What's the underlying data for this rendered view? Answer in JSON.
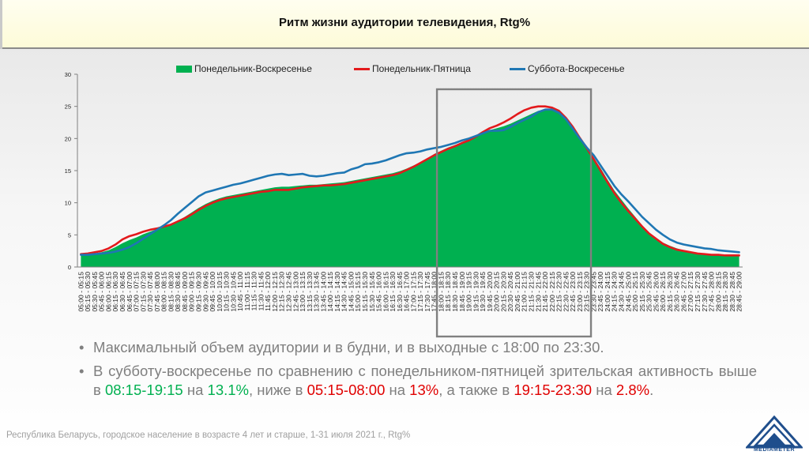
{
  "title": "Ритм жизни аудитории телевидения, Rtg%",
  "legend": {
    "all": "Понедельник-Воскресенье",
    "weekdays": "Понедельник-Пятница",
    "weekend": "Суббота-Воскресенье"
  },
  "colors": {
    "all": "#00b050",
    "weekdays": "#e31a1c",
    "weekend": "#1f77b4",
    "highlight": "#808080"
  },
  "chart_data": {
    "type": "area",
    "ylim": [
      0,
      30
    ],
    "yticks": [
      0,
      5,
      10,
      15,
      20,
      25,
      30
    ],
    "categories": [
      "05:00 - 05:15",
      "05:15 - 05:30",
      "05:30 - 05:45",
      "05:45 - 06:00",
      "06:00 - 06:15",
      "06:15 - 06:30",
      "06:30 - 06:45",
      "06:45 - 07:00",
      "07:00 - 07:15",
      "07:15 - 07:30",
      "07:30 - 07:45",
      "07:45 - 08:00",
      "08:00 - 08:15",
      "08:15 - 08:30",
      "08:30 - 08:45",
      "08:45 - 09:00",
      "09:00 - 09:15",
      "09:15 - 09:30",
      "09:30 - 09:45",
      "09:45 - 10:00",
      "10:00 - 10:15",
      "10:15 - 10:30",
      "10:30 - 10:45",
      "10:45 - 11:00",
      "11:00 - 11:15",
      "11:15 - 11:30",
      "11:30 - 11:45",
      "11:45 - 12:00",
      "12:00 - 12:15",
      "12:15 - 12:30",
      "12:30 - 12:45",
      "12:45 - 13:00",
      "13:00 - 13:15",
      "13:15 - 13:30",
      "13:30 - 13:45",
      "13:45 - 14:00",
      "14:00 - 14:15",
      "14:15 - 14:30",
      "14:30 - 14:45",
      "14:45 - 15:00",
      "15:00 - 15:15",
      "15:15 - 15:30",
      "15:30 - 15:45",
      "15:45 - 16:00",
      "16:00 - 16:15",
      "16:15 - 16:30",
      "16:30 - 16:45",
      "16:45 - 17:00",
      "17:00 - 17:15",
      "17:15 - 17:30",
      "17:30 - 17:45",
      "17:45 - 18:00",
      "18:00 - 18:15",
      "18:15 - 18:30",
      "18:30 - 18:45",
      "18:45 - 19:00",
      "19:00 - 19:15",
      "19:15 - 19:30",
      "19:30 - 19:45",
      "19:45 - 20:00",
      "20:00 - 20:15",
      "20:15 - 20:30",
      "20:30 - 20:45",
      "20:45 - 21:00",
      "21:00 - 21:15",
      "21:15 - 21:30",
      "21:30 - 21:45",
      "21:45 - 22:00",
      "22:00 - 22:15",
      "22:15 - 22:30",
      "22:30 - 22:45",
      "22:45 - 23:00",
      "23:00 - 23:15",
      "23:15 - 23:30",
      "23:30 - 23:45",
      "23:45 - 24:00",
      "24:00 - 24:15",
      "24:15 - 24:30",
      "24:30 - 24:45",
      "24:45 - 25:00",
      "25:00 - 25:15",
      "25:15 - 25:30",
      "25:30 - 25:45",
      "25:45 - 26:00",
      "26:00 - 26:15",
      "26:15 - 26:30",
      "26:30 - 26:45",
      "26:45 - 27:00",
      "27:00 - 27:15",
      "27:15 - 27:30",
      "27:30 - 27:45",
      "27:45 - 28:00",
      "28:00 - 28:15",
      "28:15 - 28:30",
      "28:30 - 28:45",
      "28:45 - 29:00"
    ],
    "series": [
      {
        "name": "Понедельник-Воскресенье",
        "type": "area",
        "values": [
          1.9,
          2.0,
          2.1,
          2.3,
          2.6,
          3.1,
          3.7,
          4.2,
          4.6,
          5.1,
          5.5,
          5.9,
          6.3,
          6.7,
          7.2,
          7.8,
          8.5,
          9.2,
          9.8,
          10.3,
          10.7,
          11.0,
          11.2,
          11.4,
          11.6,
          11.8,
          12.0,
          12.2,
          12.4,
          12.5,
          12.5,
          12.6,
          12.7,
          12.8,
          12.8,
          12.9,
          13.0,
          13.1,
          13.2,
          13.4,
          13.6,
          13.8,
          14.0,
          14.2,
          14.4,
          14.6,
          14.9,
          15.3,
          15.8,
          16.3,
          16.9,
          17.6,
          18.1,
          18.6,
          19.0,
          19.4,
          19.8,
          20.3,
          20.8,
          21.3,
          21.6,
          21.9,
          22.3,
          22.8,
          23.3,
          23.8,
          24.3,
          24.5,
          24.4,
          24.0,
          23.0,
          21.7,
          20.2,
          18.6,
          17.0,
          15.4,
          13.6,
          11.9,
          10.5,
          9.1,
          7.8,
          6.5,
          5.4,
          4.5,
          3.8,
          3.3,
          2.9,
          2.6,
          2.4,
          2.2,
          2.1,
          2.0,
          2.0,
          1.9,
          1.9,
          1.8
        ]
      },
      {
        "name": "Понедельник-Пятница",
        "type": "line",
        "values": [
          2.0,
          2.1,
          2.3,
          2.5,
          2.9,
          3.5,
          4.3,
          4.8,
          5.1,
          5.5,
          5.8,
          6.0,
          6.3,
          6.6,
          7.1,
          7.6,
          8.2,
          8.9,
          9.5,
          10.0,
          10.4,
          10.7,
          10.9,
          11.1,
          11.3,
          11.5,
          11.7,
          11.8,
          12.0,
          12.0,
          12.0,
          12.2,
          12.4,
          12.5,
          12.6,
          12.7,
          12.7,
          12.8,
          12.9,
          13.1,
          13.3,
          13.5,
          13.7,
          13.9,
          14.1,
          14.3,
          14.6,
          15.1,
          15.6,
          16.2,
          16.8,
          17.4,
          17.9,
          18.4,
          18.8,
          19.3,
          19.7,
          20.3,
          21.0,
          21.6,
          22.0,
          22.5,
          23.1,
          23.8,
          24.4,
          24.8,
          25.0,
          25.0,
          24.8,
          24.3,
          23.2,
          21.8,
          20.1,
          18.5,
          16.8,
          15.0,
          13.2,
          11.5,
          10.0,
          8.7,
          7.5,
          6.3,
          5.2,
          4.4,
          3.6,
          3.1,
          2.7,
          2.5,
          2.3,
          2.1,
          2.0,
          1.9,
          1.9,
          1.8,
          1.8,
          1.8
        ]
      },
      {
        "name": "Суббота-Воскресенье",
        "type": "line",
        "values": [
          1.9,
          1.9,
          2.0,
          2.1,
          2.2,
          2.4,
          2.7,
          3.1,
          3.7,
          4.4,
          5.1,
          5.8,
          6.5,
          7.3,
          8.3,
          9.2,
          10.1,
          11.0,
          11.6,
          11.9,
          12.2,
          12.5,
          12.8,
          13.0,
          13.3,
          13.6,
          13.9,
          14.2,
          14.4,
          14.5,
          14.3,
          14.4,
          14.5,
          14.2,
          14.1,
          14.2,
          14.4,
          14.6,
          14.7,
          15.2,
          15.5,
          16.0,
          16.1,
          16.3,
          16.6,
          17.0,
          17.4,
          17.7,
          17.8,
          18.0,
          18.3,
          18.5,
          18.7,
          19.0,
          19.3,
          19.7,
          20.0,
          20.4,
          20.8,
          21.2,
          21.2,
          21.3,
          21.8,
          22.4,
          22.9,
          23.4,
          24.1,
          24.5,
          24.5,
          24.0,
          23.0,
          21.5,
          20.0,
          18.6,
          17.4,
          15.8,
          14.2,
          12.6,
          11.3,
          10.2,
          9.0,
          7.8,
          6.8,
          5.8,
          5.0,
          4.3,
          3.8,
          3.5,
          3.3,
          3.1,
          2.9,
          2.8,
          2.6,
          2.5,
          2.4,
          2.3
        ]
      }
    ],
    "highlight_range": [
      "18:00 - 18:15",
      "23:15 - 23:30"
    ]
  },
  "bullets": [
    {
      "text": "Максимальный объем аудитории и в будни, и в выходные с 18:00 по 23:30."
    },
    {
      "p1": "В субботу-воскресенье по сравнению с понедельником-пятницей зрительская активность выше в ",
      "v1": "08:15-19:15",
      "p2": " на ",
      "v2": "13.1%",
      "p3": ", ниже в ",
      "v3": "05:15-08:00",
      "p4": " на ",
      "v4": "13%",
      "p5": ", а также в ",
      "v5": "19:15-23:30",
      "p6": " на ",
      "v6": "2.8%",
      "p7": "."
    }
  ],
  "footer": "Республика  Беларусь, городское население  в возрасте 4 лет и старше,  1-31 июля 2021 г., Rtg%",
  "logo_text": "MEDIAMETER"
}
